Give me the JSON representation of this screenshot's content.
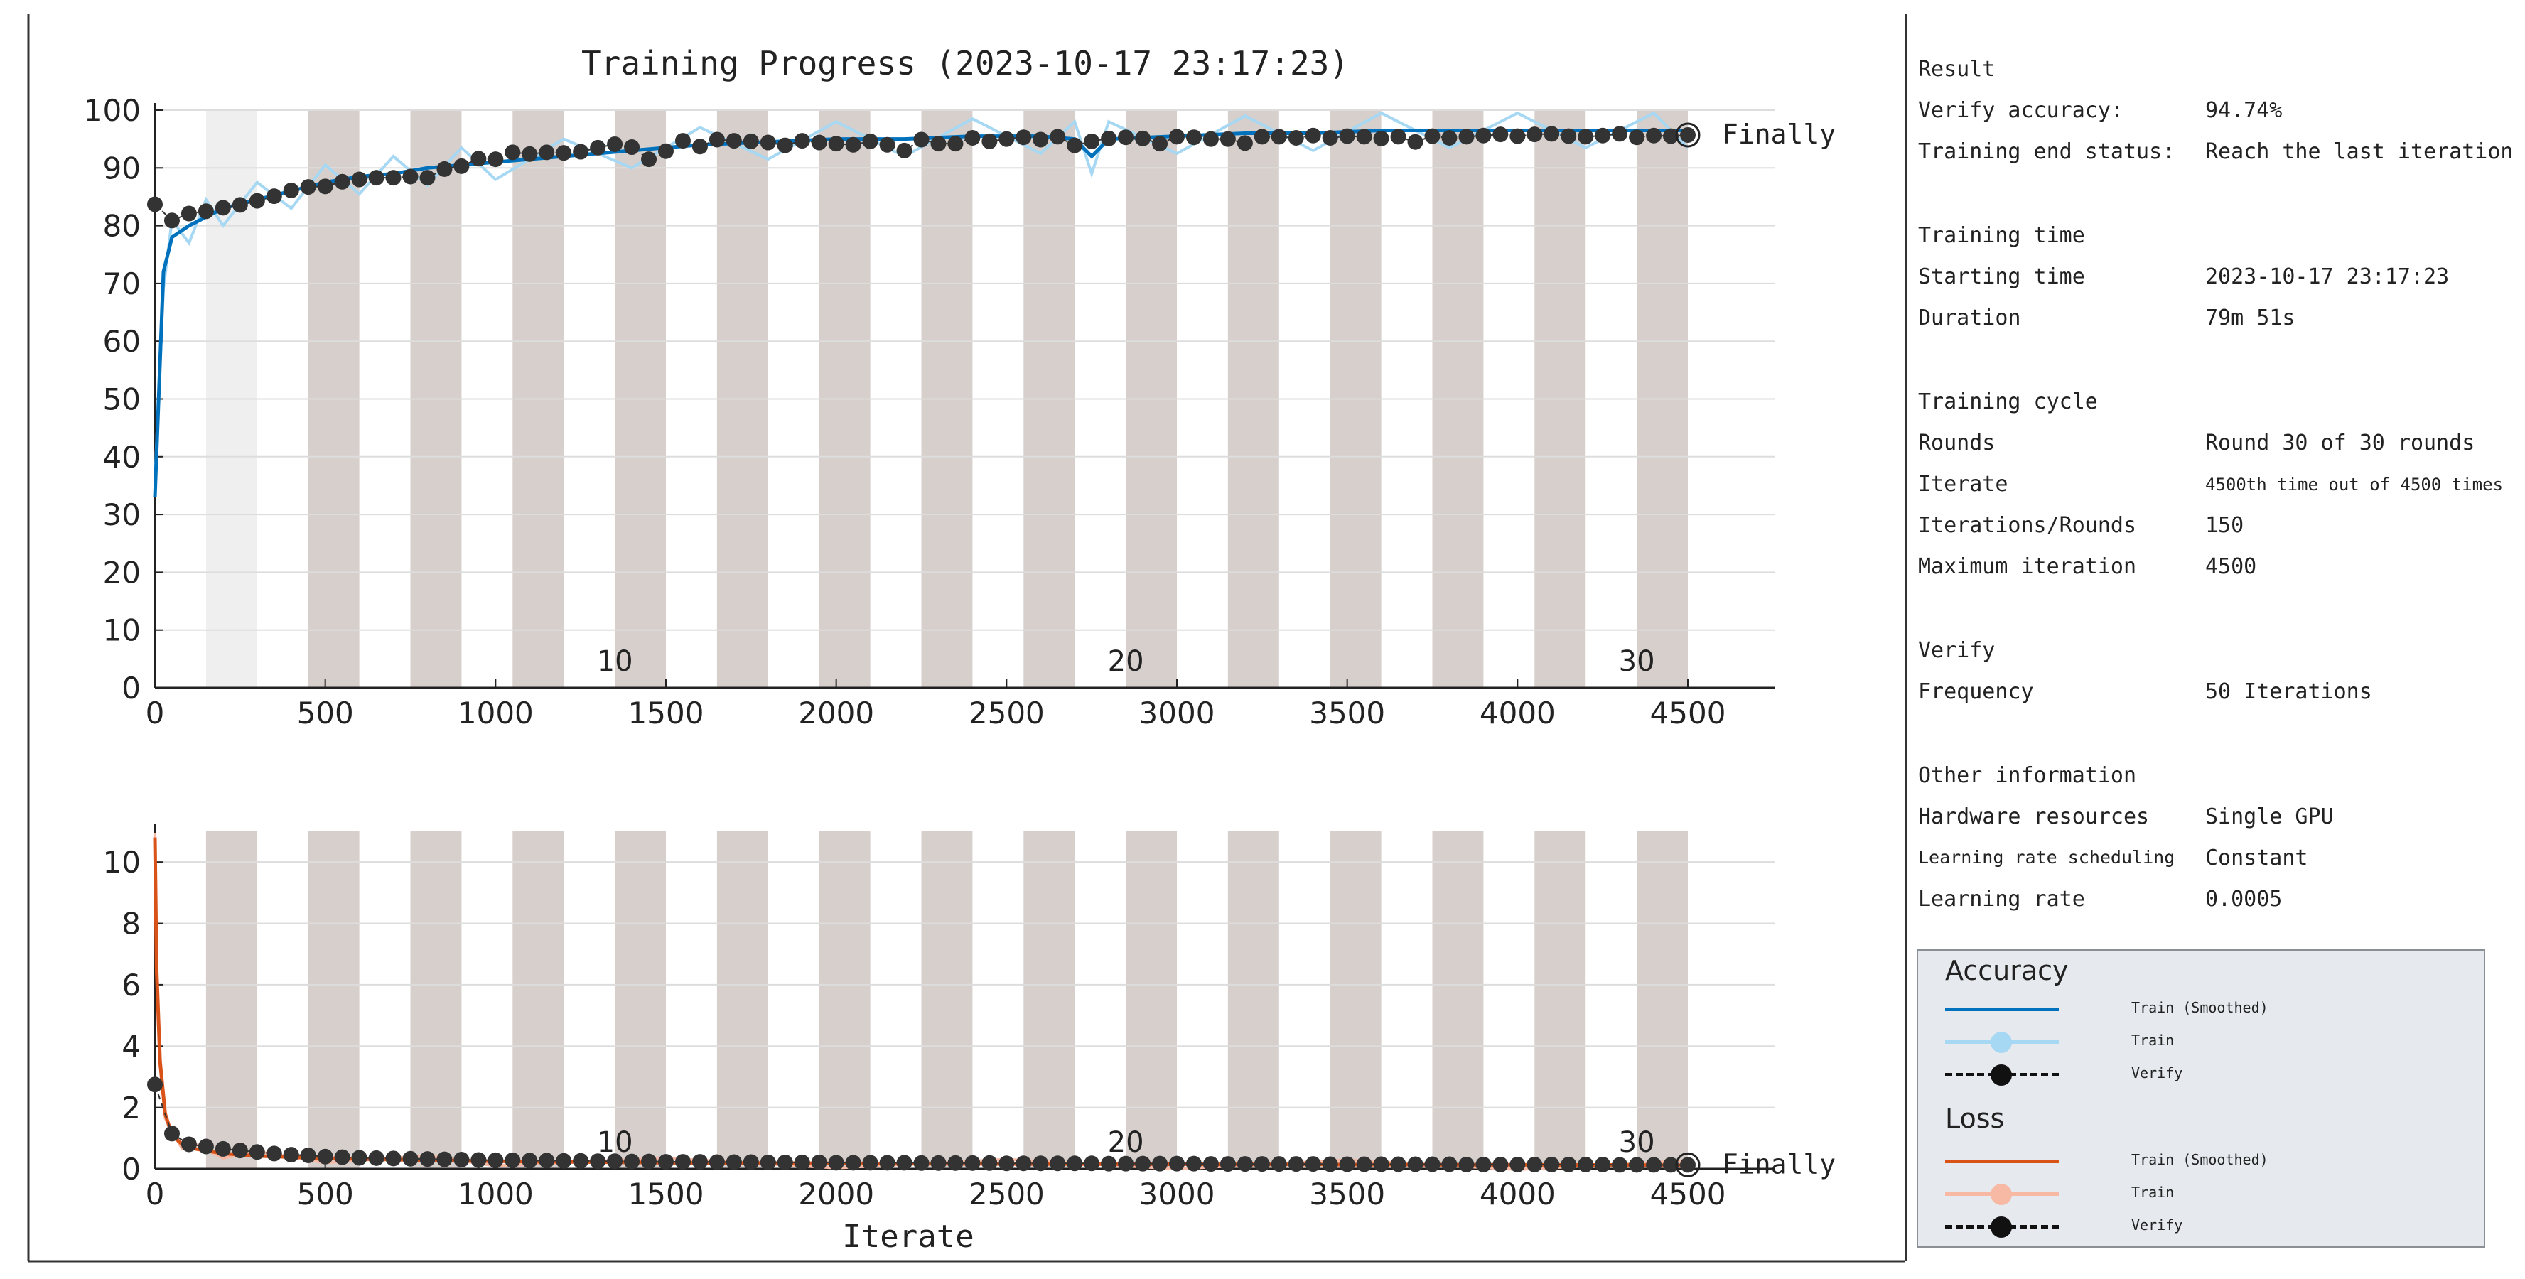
{
  "chart_data": [
    {
      "type": "line",
      "title": "Training Progress (2023-10-17 23:17:23)",
      "xlabel": "",
      "ylabel": "",
      "xlim": [
        0,
        4500
      ],
      "ylim": [
        0,
        100
      ],
      "xticks": [
        0,
        500,
        1000,
        1500,
        2000,
        2500,
        3000,
        3500,
        4000,
        4500
      ],
      "yticks": [
        0,
        10,
        20,
        30,
        40,
        50,
        60,
        70,
        80,
        90,
        100
      ],
      "epoch_labels": [
        {
          "iteration": 1350,
          "label": "10"
        },
        {
          "iteration": 2850,
          "label": "20"
        },
        {
          "iteration": 4350,
          "label": "30"
        }
      ],
      "end_marker_label": "Finally",
      "grid": "horizontal",
      "series": [
        {
          "name": "Train (Smoothed)",
          "color": "#0072bd",
          "x": [
            0,
            25,
            50,
            100,
            150,
            200,
            300,
            400,
            500,
            600,
            700,
            800,
            900,
            1000,
            1200,
            1400,
            1600,
            1800,
            2000,
            2200,
            2400,
            2600,
            2700,
            2750,
            2800,
            3000,
            3200,
            3400,
            3600,
            3800,
            4000,
            4200,
            4400,
            4500
          ],
          "y": [
            33,
            72,
            78,
            80,
            81.5,
            83,
            84.5,
            86,
            87.5,
            88.5,
            89,
            90,
            90.5,
            91,
            92,
            93,
            94,
            94.5,
            95,
            95,
            95.5,
            95.5,
            95,
            92,
            95,
            95.5,
            96,
            96,
            96.5,
            96.5,
            96.5,
            96.5,
            96.5,
            96.5
          ]
        },
        {
          "name": "Verify",
          "color": "#333333",
          "x": [
            0,
            50,
            100,
            150,
            200,
            250,
            300,
            350,
            400,
            450,
            500,
            550,
            600,
            650,
            700,
            750,
            800,
            850,
            900,
            950,
            1000,
            1050,
            1100,
            1150,
            1200,
            1250,
            1300,
            1350,
            1400,
            1450,
            1500,
            1550,
            1600,
            1650,
            1700,
            1750,
            1800,
            1850,
            1900,
            1950,
            2000,
            2050,
            2100,
            2150,
            2200,
            2250,
            2300,
            2350,
            2400,
            2450,
            2500,
            2550,
            2600,
            2650,
            2700,
            2750,
            2800,
            2850,
            2900,
            2950,
            3000,
            3050,
            3100,
            3150,
            3200,
            3250,
            3300,
            3350,
            3400,
            3450,
            3500,
            3550,
            3600,
            3650,
            3700,
            3750,
            3800,
            3850,
            3900,
            3950,
            4000,
            4050,
            4100,
            4150,
            4200,
            4250,
            4300,
            4350,
            4400,
            4450,
            4500
          ],
          "y": [
            83.7,
            80.9,
            82.1,
            82.5,
            83.1,
            83.6,
            84.3,
            85.1,
            86.1,
            86.7,
            86.8,
            87.6,
            88.0,
            88.3,
            88.3,
            88.5,
            88.3,
            89.8,
            90.3,
            91.6,
            91.5,
            92.7,
            92.4,
            92.7,
            92.6,
            92.8,
            93.5,
            94.1,
            93.6,
            91.5,
            92.9,
            94.7,
            93.7,
            94.9,
            94.7,
            94.6,
            94.4,
            93.9,
            94.7,
            94.4,
            94.2,
            94.0,
            94.6,
            94.0,
            93.0,
            94.9,
            94.2,
            94.2,
            95.2,
            94.6,
            95.0,
            95.3,
            94.9,
            95.4,
            93.9,
            94.6,
            95.1,
            95.3,
            95.1,
            94.2,
            95.4,
            95.3,
            95.0,
            95.0,
            94.3,
            95.4,
            95.4,
            95.2,
            95.6,
            95.2,
            95.5,
            95.4,
            95.1,
            95.4,
            94.5,
            95.5,
            95.2,
            95.4,
            95.6,
            95.8,
            95.5,
            95.8,
            95.9,
            95.5,
            95.4,
            95.6,
            95.9,
            95.3,
            95.6,
            95.5,
            95.7
          ]
        }
      ]
    },
    {
      "type": "line",
      "title": "",
      "xlabel": "Iterate",
      "ylabel": "",
      "xlim": [
        0,
        4500
      ],
      "ylim": [
        0,
        11
      ],
      "xticks": [
        0,
        500,
        1000,
        1500,
        2000,
        2500,
        3000,
        3500,
        4000,
        4500
      ],
      "yticks": [
        0,
        2,
        4,
        6,
        8,
        10
      ],
      "epoch_labels": [
        {
          "iteration": 1350,
          "label": "10"
        },
        {
          "iteration": 2850,
          "label": "20"
        },
        {
          "iteration": 4350,
          "label": "30"
        }
      ],
      "end_marker_label": "Finally",
      "grid": "horizontal",
      "series": [
        {
          "name": "Train (Smoothed)",
          "color": "#d95319",
          "x": [
            0,
            5,
            15,
            30,
            50,
            80,
            120,
            200,
            300,
            500,
            800,
            1000,
            1500,
            2000,
            2500,
            3000,
            3500,
            4000,
            4500
          ],
          "y": [
            10.8,
            6.5,
            3.5,
            1.8,
            1.1,
            0.8,
            0.65,
            0.5,
            0.42,
            0.35,
            0.28,
            0.25,
            0.2,
            0.18,
            0.16,
            0.15,
            0.14,
            0.13,
            0.12
          ]
        },
        {
          "name": "Verify",
          "color": "#333333",
          "x": [
            0,
            50,
            100,
            150,
            200,
            250,
            300,
            350,
            400,
            450,
            500,
            550,
            600,
            650,
            700,
            750,
            800,
            850,
            900,
            950,
            1000,
            1050,
            1100,
            1150,
            1200,
            1250,
            1300,
            1350,
            1400,
            1450,
            1500,
            1550,
            1600,
            1650,
            1700,
            1750,
            1800,
            1850,
            1900,
            1950,
            2000,
            2050,
            2100,
            2150,
            2200,
            2250,
            2300,
            2350,
            2400,
            2450,
            2500,
            2550,
            2600,
            2650,
            2700,
            2750,
            2800,
            2850,
            2900,
            2950,
            3000,
            3050,
            3100,
            3150,
            3200,
            3250,
            3300,
            3350,
            3400,
            3450,
            3500,
            3550,
            3600,
            3650,
            3700,
            3750,
            3800,
            3850,
            3900,
            3950,
            4000,
            4050,
            4100,
            4150,
            4200,
            4250,
            4300,
            4350,
            4400,
            4450,
            4500
          ],
          "y": [
            2.75,
            1.15,
            0.8,
            0.73,
            0.65,
            0.6,
            0.55,
            0.5,
            0.46,
            0.44,
            0.4,
            0.38,
            0.36,
            0.35,
            0.34,
            0.33,
            0.32,
            0.31,
            0.3,
            0.29,
            0.28,
            0.28,
            0.27,
            0.27,
            0.26,
            0.26,
            0.25,
            0.25,
            0.24,
            0.24,
            0.23,
            0.23,
            0.23,
            0.22,
            0.22,
            0.22,
            0.21,
            0.21,
            0.21,
            0.21,
            0.2,
            0.2,
            0.2,
            0.2,
            0.2,
            0.19,
            0.19,
            0.19,
            0.19,
            0.19,
            0.18,
            0.18,
            0.18,
            0.18,
            0.18,
            0.18,
            0.17,
            0.17,
            0.17,
            0.17,
            0.17,
            0.17,
            0.16,
            0.16,
            0.16,
            0.16,
            0.16,
            0.16,
            0.16,
            0.15,
            0.15,
            0.15,
            0.15,
            0.15,
            0.15,
            0.15,
            0.15,
            0.14,
            0.14,
            0.14,
            0.14,
            0.14,
            0.14,
            0.14,
            0.14,
            0.14,
            0.13,
            0.13,
            0.13,
            0.13,
            0.13
          ]
        }
      ]
    }
  ],
  "colors": {
    "epoch_band": "#d6cfcc",
    "first_band": "#efefef",
    "train_accuracy": "#0072bd",
    "train_accuracy_raw": "#a6d8f3",
    "train_loss": "#d95319",
    "train_loss_raw": "#f7b8a4",
    "verify": "#333333",
    "grid": "#dddddd"
  },
  "panel": {
    "result_head": "Result",
    "verify_accuracy_label": "Verify accuracy:",
    "verify_accuracy_value": "94.74%",
    "end_status_label": "Training end status:",
    "end_status_value": "Reach the last iteration",
    "time_head": "Training time",
    "start_label": "Starting time",
    "start_value": "2023-10-17 23:17:23",
    "duration_label": "Duration",
    "duration_value": "79m 51s",
    "cycle_head": "Training cycle",
    "rounds_label": "Rounds",
    "rounds_value": "Round 30 of 30 rounds",
    "iterate_label": "Iterate",
    "iterate_value": "4500th time out of 4500 times",
    "ipr_label": "Iterations/Rounds",
    "ipr_value": "150",
    "max_label": "Maximum iteration",
    "max_value": "4500",
    "verify_head": "Verify",
    "freq_label": "Frequency",
    "freq_value": "50 Iterations",
    "other_head": "Other information",
    "hw_label": "Hardware resources",
    "hw_value": "Single GPU",
    "lrs_label": "Learning rate scheduling",
    "lrs_value": "Constant",
    "lr_label": "Learning rate",
    "lr_value": "0.0005"
  },
  "legend": {
    "accuracy_title": "Accuracy",
    "loss_title": "Loss",
    "train_smoothed": "Train (Smoothed)",
    "train": "Train",
    "verify": "Verify"
  }
}
